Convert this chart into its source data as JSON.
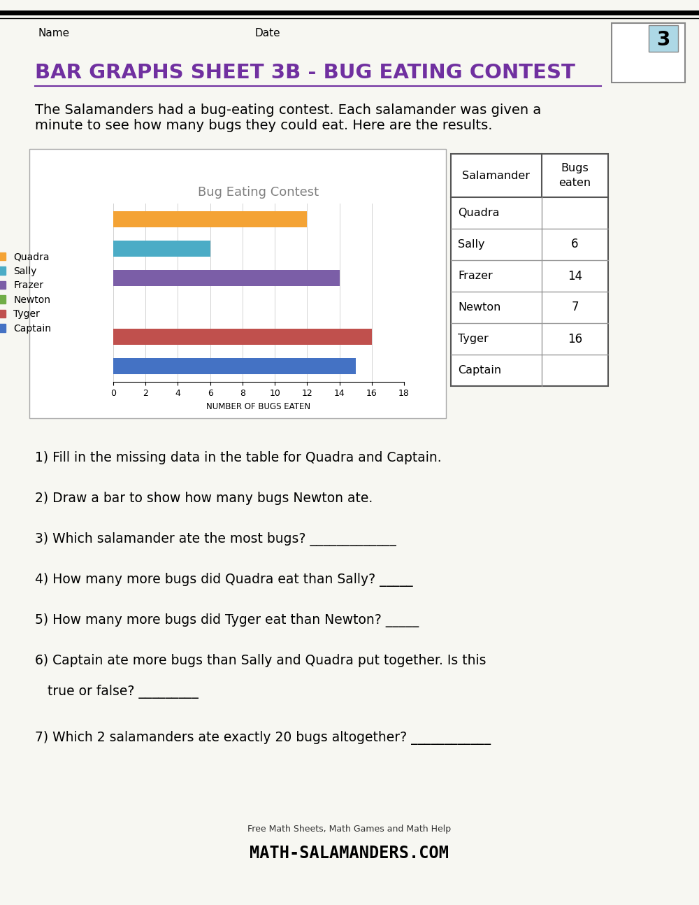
{
  "title": "BAR GRAPHS SHEET 3B - BUG EATING CONTEST",
  "title_color": "#7030A0",
  "description": "The Salamanders had a bug-eating contest. Each salamander was given a\nminute to see how many bugs they could eat. Here are the results.",
  "chart_title": "Bug Eating Contest",
  "chart_title_color": "#808080",
  "salamanders": [
    "Quadra",
    "Sally",
    "Frazer",
    "Newton",
    "Tyger",
    "Captain"
  ],
  "values": [
    12,
    6,
    14,
    0,
    16,
    15
  ],
  "bar_colors": [
    "#F4A335",
    "#4BACC6",
    "#7B5EA7",
    "#70AD47",
    "#C0504D",
    "#4472C4"
  ],
  "xlim": [
    0,
    18
  ],
  "xticks": [
    0,
    2,
    4,
    6,
    8,
    10,
    12,
    14,
    16,
    18
  ],
  "xlabel": "NUMBER OF BUGS EATEN",
  "table_rows": [
    [
      "Quadra",
      ""
    ],
    [
      "Sally",
      "6"
    ],
    [
      "Frazer",
      "14"
    ],
    [
      "Newton",
      "7"
    ],
    [
      "Tyger",
      "16"
    ],
    [
      "Captain",
      ""
    ]
  ],
  "questions": [
    "1) Fill in the missing data in the table for Quadra and Captain.",
    "2) Draw a bar to show how many bugs Newton ate.",
    "3) Which salamander ate the most bugs? _____________",
    "4) How many more bugs did Quadra eat than Sally? _____",
    "5) How many more bugs did Tyger eat than Newton? _____",
    "6) Captain ate more bugs than Sally and Quadra put together. Is this\n\n   true or false? _________",
    "7) Which 2 salamanders ate exactly 20 bugs altogether? ____________"
  ],
  "page_bg": "#F7F7F2"
}
